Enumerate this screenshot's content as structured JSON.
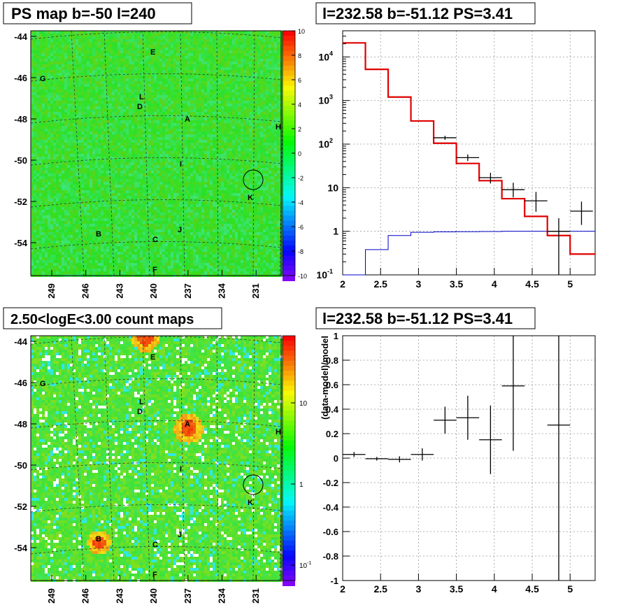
{
  "panels": {
    "tl_title": "PS map b=-50 l=240",
    "tr_title": "l=232.58 b=-51.12 PS=3.41",
    "bl_title": "2.50<logE<3.00 count maps",
    "br_title": "l=232.58 b=-51.12 PS=3.41"
  },
  "colors": {
    "data": "#000000",
    "model": "#e00000",
    "source": "#0000c8",
    "grid": "#888888"
  },
  "chart_data": [
    {
      "type": "heatmap",
      "title": "PS map b=-50 l=240",
      "x_ticks": [
        "249",
        "246",
        "243",
        "240",
        "237",
        "234",
        "231"
      ],
      "y_ticks": [
        "-44",
        "-46",
        "-48",
        "-50",
        "-52",
        "-54"
      ],
      "colorbar_ticks": [
        "10",
        "8",
        "6",
        "4",
        "2",
        "0",
        "-2",
        "-4",
        "-6",
        "-8",
        "-10"
      ],
      "colorbar_range": [
        -10,
        10
      ],
      "source_labels": [
        "E",
        "G",
        "L",
        "D",
        "A",
        "H",
        "I",
        "K",
        "J",
        "B",
        "C",
        "F"
      ],
      "marked_source": {
        "l": 232.58,
        "b": -51.12
      }
    },
    {
      "type": "line",
      "title": "l=232.58 b=-51.12 PS=3.41",
      "xlabel": "",
      "ylabel": "",
      "xlim": [
        2,
        5.33
      ],
      "ylim_log10": [
        -1,
        4.6
      ],
      "yscale": "log",
      "x_ticks": [
        "2",
        "2.5",
        "3",
        "3.5",
        "4",
        "4.5",
        "5"
      ],
      "y_ticks": [
        "10^-1",
        "1",
        "10",
        "10^2",
        "10^3",
        "10^4"
      ],
      "grid": true,
      "bin_edges": [
        2.0,
        2.3,
        2.6,
        2.9,
        3.2,
        3.5,
        3.8,
        4.1,
        4.4,
        4.7,
        5.0,
        5.33
      ],
      "series": [
        {
          "values": [
            21000,
            5200,
            1200,
            340,
            105,
            36,
            14.5,
            5.6,
            2.2,
            0.8,
            0.3
          ]
        },
        {
          "values": [
            0.1,
            0.38,
            0.8,
            0.95,
            0.97,
            0.98,
            0.99,
            1.0,
            1.0,
            1.0,
            1.0
          ]
        }
      ],
      "points": [
        {
          "x": 3.35,
          "xerr": 0.15,
          "y": 140,
          "lo": 125,
          "hi": 155
        },
        {
          "x": 3.65,
          "xerr": 0.15,
          "y": 49,
          "lo": 41,
          "hi": 58
        },
        {
          "x": 3.95,
          "xerr": 0.15,
          "y": 17,
          "lo": 12.5,
          "hi": 22
        },
        {
          "x": 4.25,
          "xerr": 0.15,
          "y": 9,
          "lo": 6,
          "hi": 13
        },
        {
          "x": 4.55,
          "xerr": 0.15,
          "y": 5,
          "lo": 2.8,
          "hi": 8
        },
        {
          "x": 4.85,
          "xerr": 0.15,
          "y": 1,
          "lo": 0.1,
          "hi": 2
        },
        {
          "x": 5.15,
          "xerr": 0.15,
          "y": 2.9,
          "lo": 1.4,
          "hi": 4.8
        }
      ]
    },
    {
      "type": "heatmap",
      "title": "2.50<logE<3.00 count maps",
      "x_ticks": [
        "249",
        "246",
        "243",
        "240",
        "237",
        "234",
        "231"
      ],
      "y_ticks": [
        "-44",
        "-46",
        "-48",
        "-50",
        "-52",
        "-54"
      ],
      "colorbar_ticks": [
        "10",
        "1",
        "10^-1"
      ],
      "colorbar_scale": "log",
      "source_labels": [
        "E",
        "G",
        "L",
        "D",
        "A",
        "H",
        "I",
        "K",
        "J",
        "B",
        "C",
        "F"
      ],
      "marked_source": {
        "l": 232.58,
        "b": -51.12
      }
    },
    {
      "type": "scatter",
      "title": "l=232.58 b=-51.12 PS=3.41",
      "xlabel": "",
      "ylabel": "(data-model)/model",
      "xlim": [
        2,
        5.33
      ],
      "ylim": [
        -1,
        1
      ],
      "x_ticks": [
        "2",
        "2.5",
        "3",
        "3.5",
        "4",
        "4.5",
        "5"
      ],
      "y_ticks": [
        "-1",
        "-0.8",
        "-0.6",
        "-0.4",
        "-0.2",
        "0",
        "0.2",
        "0.4",
        "0.6",
        "0.8",
        "1"
      ],
      "grid": true,
      "points": [
        {
          "x": 2.15,
          "xerr": 0.15,
          "y": 0.03,
          "lo": 0.01,
          "hi": 0.05
        },
        {
          "x": 2.45,
          "xerr": 0.15,
          "y": -0.005,
          "lo": -0.02,
          "hi": 0.01
        },
        {
          "x": 2.75,
          "xerr": 0.15,
          "y": -0.01,
          "lo": -0.035,
          "hi": 0.015
        },
        {
          "x": 3.05,
          "xerr": 0.15,
          "y": 0.03,
          "lo": -0.02,
          "hi": 0.08
        },
        {
          "x": 3.35,
          "xerr": 0.15,
          "y": 0.31,
          "lo": 0.2,
          "hi": 0.42
        },
        {
          "x": 3.65,
          "xerr": 0.15,
          "y": 0.33,
          "lo": 0.15,
          "hi": 0.51
        },
        {
          "x": 3.95,
          "xerr": 0.15,
          "y": 0.15,
          "lo": -0.13,
          "hi": 0.43
        },
        {
          "x": 4.25,
          "xerr": 0.15,
          "y": 0.59,
          "lo": 0.06,
          "hi": 1.0
        },
        {
          "x": 4.85,
          "xerr": 0.15,
          "y": 0.27,
          "lo": -1.0,
          "hi": 1.0
        }
      ]
    }
  ]
}
